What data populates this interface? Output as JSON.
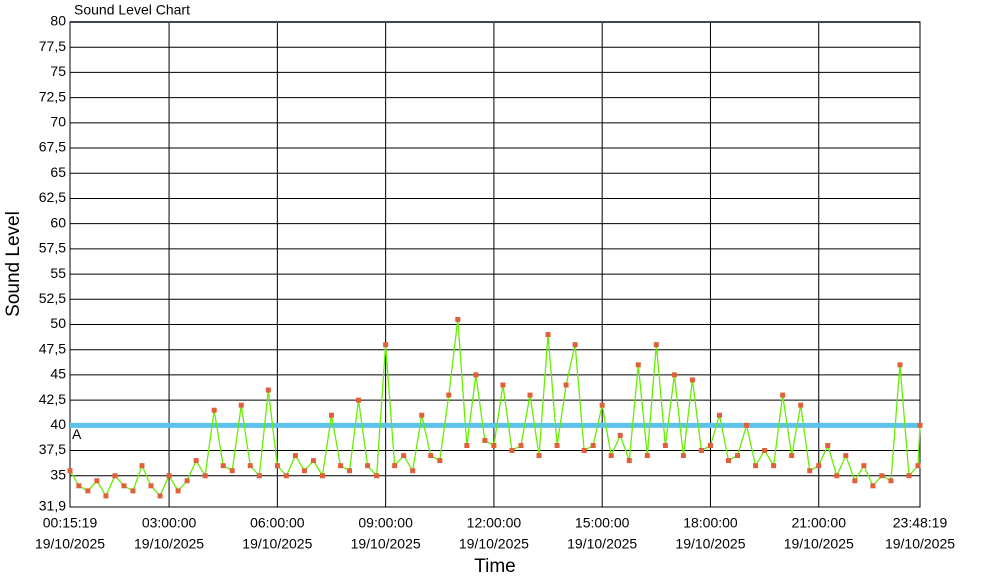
{
  "chart_data": {
    "type": "line",
    "title": "Sound Level Chart",
    "x_label": "Time",
    "y_label": "Sound Level",
    "color": "#66ee00",
    "marker_color": "#e0603a",
    "threshold": {
      "value": 40,
      "label": "A",
      "color": "#5bc2ee"
    },
    "xlim": [
      "00:15:19",
      "23:48:19"
    ],
    "xticks": [
      {
        "value": "00:15:19",
        "label": [
          "00:15:19",
          "19/10/2025"
        ]
      },
      {
        "value": "03:00:00",
        "label": [
          "03:00:00",
          "19/10/2025"
        ]
      },
      {
        "value": "06:00:00",
        "label": [
          "06:00:00",
          "19/10/2025"
        ]
      },
      {
        "value": "09:00:00",
        "label": [
          "09:00:00",
          "19/10/2025"
        ]
      },
      {
        "value": "12:00:00",
        "label": [
          "12:00:00",
          "19/10/2025"
        ]
      },
      {
        "value": "15:00:00",
        "label": [
          "15:00:00",
          "19/10/2025"
        ]
      },
      {
        "value": "18:00:00",
        "label": [
          "18:00:00",
          "19/10/2025"
        ]
      },
      {
        "value": "21:00:00",
        "label": [
          "21:00:00",
          "19/10/2025"
        ]
      },
      {
        "value": "23:48:19",
        "label": [
          "23:48:19",
          "19/10/2025"
        ]
      }
    ],
    "ylim": [
      31.9,
      80
    ],
    "yticks": [
      {
        "value": 31.9,
        "label": "31,9"
      },
      35,
      {
        "value": 37.5,
        "label": "37,5"
      },
      40,
      {
        "value": 42.5,
        "label": "42,5"
      },
      45,
      {
        "value": 47.5,
        "label": "47,5"
      },
      50,
      {
        "value": 52.5,
        "label": "52,5"
      },
      55,
      {
        "value": 57.5,
        "label": "57,5"
      },
      60,
      {
        "value": 62.5,
        "label": "62,5"
      },
      65,
      {
        "value": 67.5,
        "label": "67,5"
      },
      70,
      {
        "value": 72.5,
        "label": "72,5"
      },
      75,
      {
        "value": 77.5,
        "label": "77,5"
      },
      80
    ],
    "grid": true,
    "x": [
      "00:15:19",
      "00:30:00",
      "00:45:00",
      "01:00:00",
      "01:15:00",
      "01:30:00",
      "01:45:00",
      "02:00:00",
      "02:15:00",
      "02:30:00",
      "02:45:00",
      "03:00:00",
      "03:15:00",
      "03:30:00",
      "03:45:00",
      "04:00:00",
      "04:15:00",
      "04:30:00",
      "04:45:00",
      "05:00:00",
      "05:15:00",
      "05:30:00",
      "05:45:00",
      "06:00:00",
      "06:15:00",
      "06:30:00",
      "06:45:00",
      "07:00:00",
      "07:15:00",
      "07:30:00",
      "07:45:00",
      "08:00:00",
      "08:15:00",
      "08:30:00",
      "08:45:00",
      "09:00:00",
      "09:15:00",
      "09:30:00",
      "09:45:00",
      "10:00:00",
      "10:15:00",
      "10:30:00",
      "10:45:00",
      "11:00:00",
      "11:15:00",
      "11:30:00",
      "11:45:00",
      "12:00:00",
      "12:15:00",
      "12:30:00",
      "12:45:00",
      "13:00:00",
      "13:15:00",
      "13:30:00",
      "13:45:00",
      "14:00:00",
      "14:15:00",
      "14:30:00",
      "14:45:00",
      "15:00:00",
      "15:15:00",
      "15:30:00",
      "15:45:00",
      "16:00:00",
      "16:15:00",
      "16:30:00",
      "16:45:00",
      "17:00:00",
      "17:15:00",
      "17:30:00",
      "17:45:00",
      "18:00:00",
      "18:15:00",
      "18:30:00",
      "18:45:00",
      "19:00:00",
      "19:15:00",
      "19:30:00",
      "19:45:00",
      "20:00:00",
      "20:15:00",
      "20:30:00",
      "20:45:00",
      "21:00:00",
      "21:15:00",
      "21:30:00",
      "21:45:00",
      "22:00:00",
      "22:15:00",
      "22:30:00",
      "22:45:00",
      "23:00:00",
      "23:15:00",
      "23:30:00",
      "23:45:00",
      "23:48:19"
    ],
    "values": [
      35.5,
      34,
      33.5,
      34.5,
      33,
      35,
      34,
      33.5,
      36,
      34,
      33,
      35,
      33.5,
      34.5,
      36.5,
      35,
      41.5,
      36,
      35.5,
      42,
      36,
      35,
      43.5,
      36,
      35,
      37,
      35.5,
      36.5,
      35,
      41,
      36,
      35.5,
      42.5,
      36,
      35,
      48,
      36,
      37,
      35.5,
      41,
      37,
      36.5,
      43,
      50.5,
      38,
      45,
      38.5,
      38,
      44,
      37.5,
      38,
      43,
      37,
      49,
      38,
      44,
      48,
      37.5,
      38,
      42,
      37,
      39,
      36.5,
      46,
      37,
      48,
      38,
      45,
      37,
      44.5,
      37.5,
      38,
      41,
      36.5,
      37,
      40,
      36,
      37.5,
      36,
      43,
      37,
      42,
      35.5,
      36,
      38,
      35,
      37,
      34.5,
      36,
      34,
      35,
      34.5,
      46,
      35,
      36,
      40
    ]
  }
}
